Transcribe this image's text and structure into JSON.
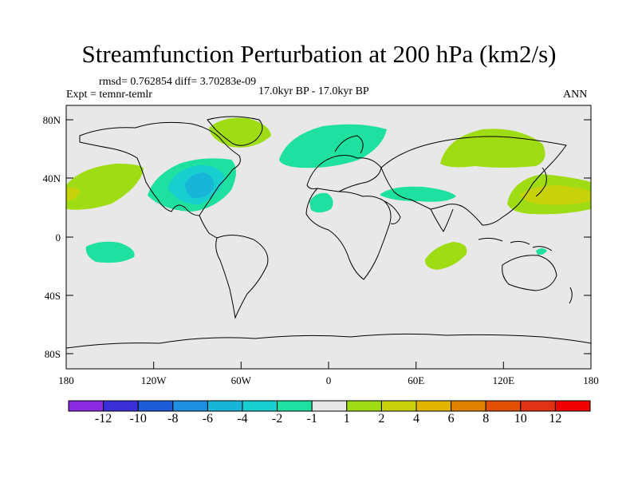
{
  "title": "Streamfunction Perturbation at 200 hPa (km2/s)",
  "stats": "rmsd= 0.762854 diff= 3.70283e-09",
  "experiment": "Expt = temnr-temlr",
  "period": "17.0kyr BP - 17.0kyr BP",
  "season": "ANN",
  "axes": {
    "lat_labels": [
      "80N",
      "40N",
      "0",
      "40S",
      "80S"
    ],
    "lon_labels": [
      "180",
      "120W",
      "60W",
      "0",
      "60E",
      "120E",
      "180"
    ]
  },
  "colorbar": {
    "labels": [
      "-12",
      "-10",
      "-8",
      "-6",
      "-4",
      "-2",
      "-1",
      "1",
      "2",
      "4",
      "6",
      "8",
      "10",
      "12"
    ],
    "colors": [
      "#8a2be2",
      "#3a2fd6",
      "#1e5bd6",
      "#1f8fe0",
      "#19b5d8",
      "#18cfcf",
      "#1ee0a0",
      "#e8e8e8",
      "#a0dc14",
      "#c8d20a",
      "#e0b400",
      "#e08200",
      "#e05000",
      "#e03214",
      "#f00000"
    ]
  },
  "colors": {
    "land_bg": "#e8e8e8",
    "positive_fill": "#a0dc14",
    "positive_strong_fill": "#c8d20a",
    "negative_fill": "#1ee0a0",
    "negative_mid_fill": "#18cfcf",
    "negative_strong_fill": "#19b5d8"
  }
}
